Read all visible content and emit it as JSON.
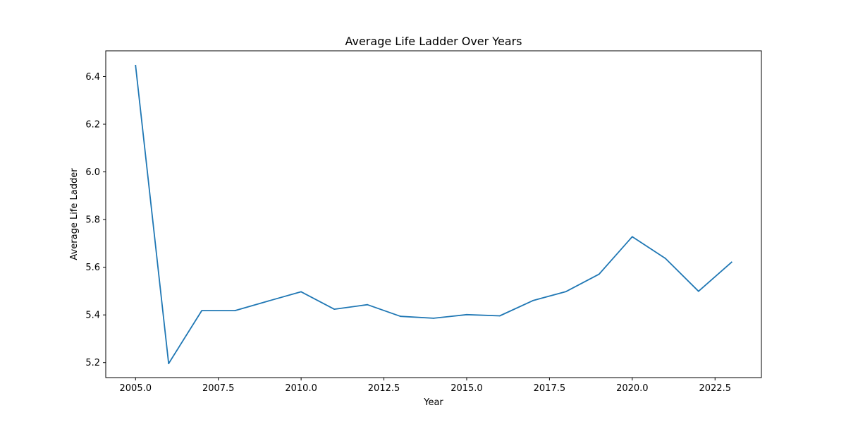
{
  "chart_data": {
    "type": "line",
    "title": "Average Life Ladder Over Years",
    "xlabel": "Year",
    "ylabel": "Average Life Ladder",
    "xlim": [
      2004.1,
      2023.9
    ],
    "ylim": [
      5.137,
      6.508
    ],
    "x_ticks": [
      2005.0,
      2007.5,
      2010.0,
      2012.5,
      2015.0,
      2017.5,
      2020.0,
      2022.5
    ],
    "x_tick_labels": [
      "2005.0",
      "2007.5",
      "2010.0",
      "2012.5",
      "2015.0",
      "2017.5",
      "2020.0",
      "2022.5"
    ],
    "y_ticks": [
      5.2,
      5.4,
      5.6,
      5.8,
      6.0,
      6.2,
      6.4
    ],
    "y_tick_labels": [
      "5.2",
      "5.4",
      "5.6",
      "5.8",
      "6.0",
      "6.2",
      "6.4"
    ],
    "grid": false,
    "series": [
      {
        "color": "#1f77b4",
        "x": [
          2005,
          2006,
          2007,
          2008,
          2009,
          2010,
          2011,
          2012,
          2013,
          2014,
          2015,
          2016,
          2017,
          2018,
          2019,
          2020,
          2021,
          2022,
          2023
        ],
        "y": [
          6.446,
          5.196,
          5.418,
          5.418,
          5.458,
          5.497,
          5.424,
          5.443,
          5.394,
          5.386,
          5.401,
          5.396,
          5.46,
          5.498,
          5.571,
          5.728,
          5.637,
          5.499,
          5.621
        ]
      }
    ]
  }
}
